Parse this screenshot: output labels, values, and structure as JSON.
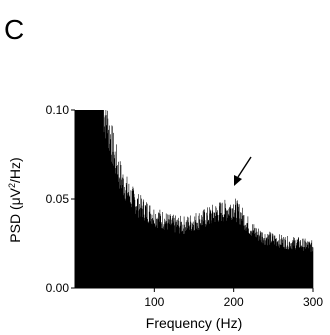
{
  "panel_label": "C",
  "chart_data": {
    "type": "area",
    "title": "",
    "xlabel": "Frequency (Hz)",
    "ylabel": {
      "prefix": "PSD (",
      "mu": "μ",
      "unit": "V",
      "exp": "2",
      "suffix": "/Hz)"
    },
    "xlim": [
      0,
      300
    ],
    "ylim": [
      0.0,
      0.1
    ],
    "x_ticks": [
      100,
      200,
      300
    ],
    "x_tick_labels": [
      "100",
      "200",
      "300"
    ],
    "y_ticks": [
      0.0,
      0.05,
      0.1
    ],
    "y_tick_labels": [
      "0.00",
      "0.05",
      "0.10"
    ],
    "grid": false,
    "arrow_annotation_x": 200,
    "series": [
      {
        "color": "#000000",
        "envelope": {
          "x": [
            0,
            35,
            40,
            45,
            50,
            55,
            60,
            70,
            80,
            90,
            100,
            110,
            120,
            130,
            140,
            150,
            160,
            170,
            180,
            190,
            200,
            210,
            220,
            230,
            240,
            250,
            260,
            270,
            280,
            290,
            300
          ],
          "y": [
            0.1,
            0.1,
            0.093,
            0.083,
            0.073,
            0.065,
            0.059,
            0.051,
            0.046,
            0.043,
            0.04,
            0.038,
            0.036,
            0.035,
            0.035,
            0.037,
            0.038,
            0.04,
            0.042,
            0.043,
            0.045,
            0.04,
            0.034,
            0.03,
            0.028,
            0.027,
            0.026,
            0.025,
            0.025,
            0.024,
            0.023
          ]
        }
      }
    ]
  }
}
